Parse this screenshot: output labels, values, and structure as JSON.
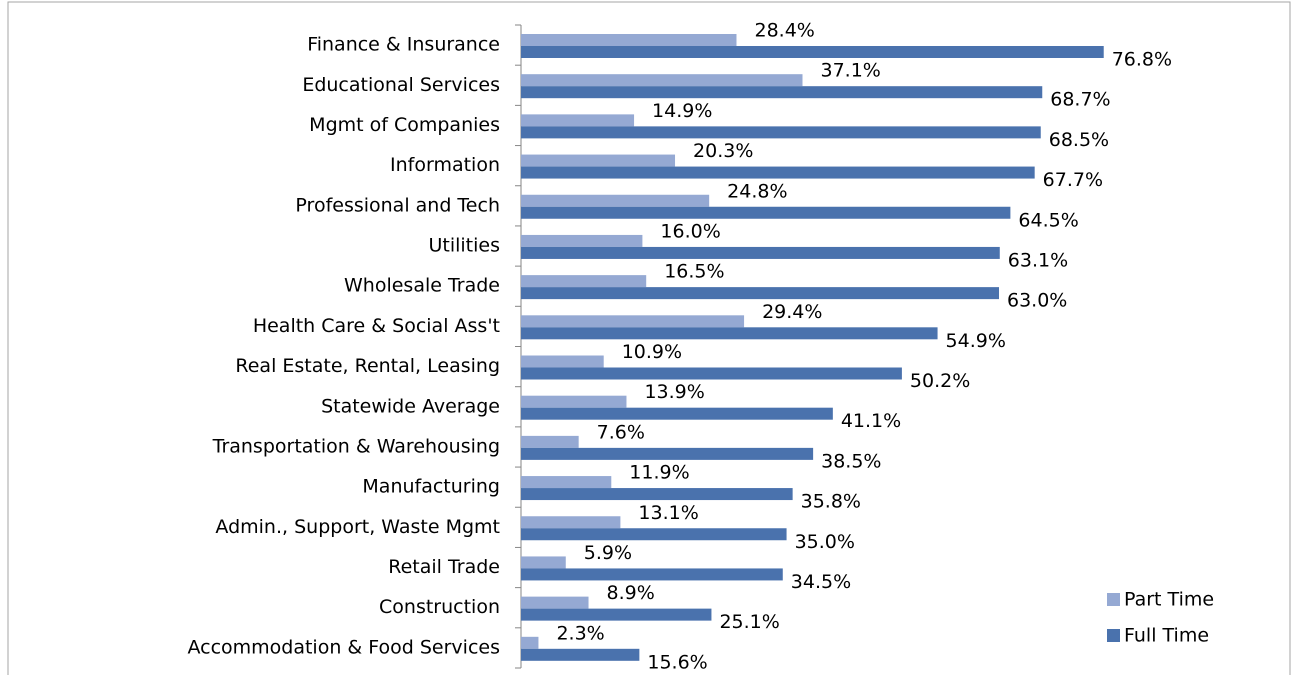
{
  "chart_data": {
    "type": "hbar",
    "categories": [
      "Finance & Insurance",
      "Educational Services",
      "Mgmt of Companies",
      "Information",
      "Professional and Tech ",
      "Utilities",
      "Wholesale Trade",
      "Health Care & Social Ass't",
      "Real Estate, Rental, Leasing",
      "Statewide Average",
      "Transportation & Warehousing",
      "Manufacturing",
      "Admin., Support, Waste Mgmt",
      "Retail Trade",
      "Construction",
      "Accommodation & Food Services"
    ],
    "series": [
      {
        "name": "Part Time",
        "color": "#95a9d3",
        "values": [
          28.4,
          37.1,
          14.9,
          20.3,
          24.8,
          16.0,
          16.5,
          29.4,
          10.9,
          13.9,
          7.6,
          11.9,
          13.1,
          5.9,
          8.9,
          2.3
        ],
        "value_labels": [
          "28.4%",
          "37.1%",
          "14.9%",
          "20.3%",
          "24.8%",
          "16.0%",
          "16.5%",
          "29.4%",
          "10.9%",
          "13.9%",
          "7.6%",
          "11.9%",
          "13.1%",
          "5.9%",
          "8.9%",
          "2.3%"
        ]
      },
      {
        "name": "Full Time",
        "color": "#4a72ad",
        "values": [
          76.8,
          68.7,
          68.5,
          67.7,
          64.5,
          63.1,
          63.0,
          54.9,
          50.2,
          41.1,
          38.5,
          35.8,
          35.0,
          34.5,
          25.1,
          15.6
        ],
        "value_labels": [
          "76.8%",
          "68.7%",
          "68.5%",
          "67.7%",
          "64.5%",
          "63.1%",
          "63.0%",
          "54.9%",
          "50.2%",
          "41.1%",
          "38.5%",
          "35.8%",
          "35.0%",
          "34.5%",
          "25.1%",
          "15.6%"
        ]
      }
    ],
    "xlim": [
      0,
      80
    ]
  }
}
